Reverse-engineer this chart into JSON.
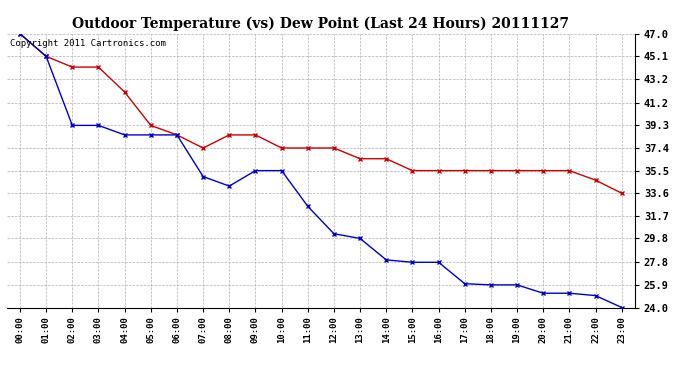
{
  "title": "Outdoor Temperature (vs) Dew Point (Last 24 Hours) 20111127",
  "copyright_text": "Copyright 2011 Cartronics.com",
  "x_labels": [
    "00:00",
    "01:00",
    "02:00",
    "03:00",
    "04:00",
    "05:00",
    "06:00",
    "07:00",
    "08:00",
    "09:00",
    "10:00",
    "11:00",
    "12:00",
    "13:00",
    "14:00",
    "15:00",
    "16:00",
    "17:00",
    "18:00",
    "19:00",
    "20:00",
    "21:00",
    "22:00",
    "23:00"
  ],
  "temp_data": [
    47.0,
    45.1,
    44.2,
    44.2,
    42.1,
    39.3,
    38.5,
    37.4,
    38.5,
    38.5,
    37.4,
    37.4,
    37.4,
    36.5,
    36.5,
    35.5,
    35.5,
    35.5,
    35.5,
    35.5,
    35.5,
    35.5,
    34.7,
    33.6
  ],
  "dew_data": [
    47.0,
    45.1,
    39.3,
    39.3,
    38.5,
    38.5,
    38.5,
    35.0,
    34.2,
    35.5,
    35.5,
    32.5,
    30.2,
    29.8,
    28.0,
    27.8,
    27.8,
    26.0,
    25.9,
    25.9,
    25.2,
    25.2,
    25.0,
    24.0
  ],
  "temp_color": "#cc0000",
  "dew_color": "#0000cc",
  "ylim_min": 24.0,
  "ylim_max": 47.0,
  "yticks": [
    24.0,
    25.9,
    27.8,
    29.8,
    31.7,
    33.6,
    35.5,
    37.4,
    39.3,
    41.2,
    43.2,
    45.1,
    47.0
  ],
  "background_color": "#ffffff",
  "grid_color": "#b0b0b0",
  "title_fontsize": 10,
  "copyright_fontsize": 6.5
}
